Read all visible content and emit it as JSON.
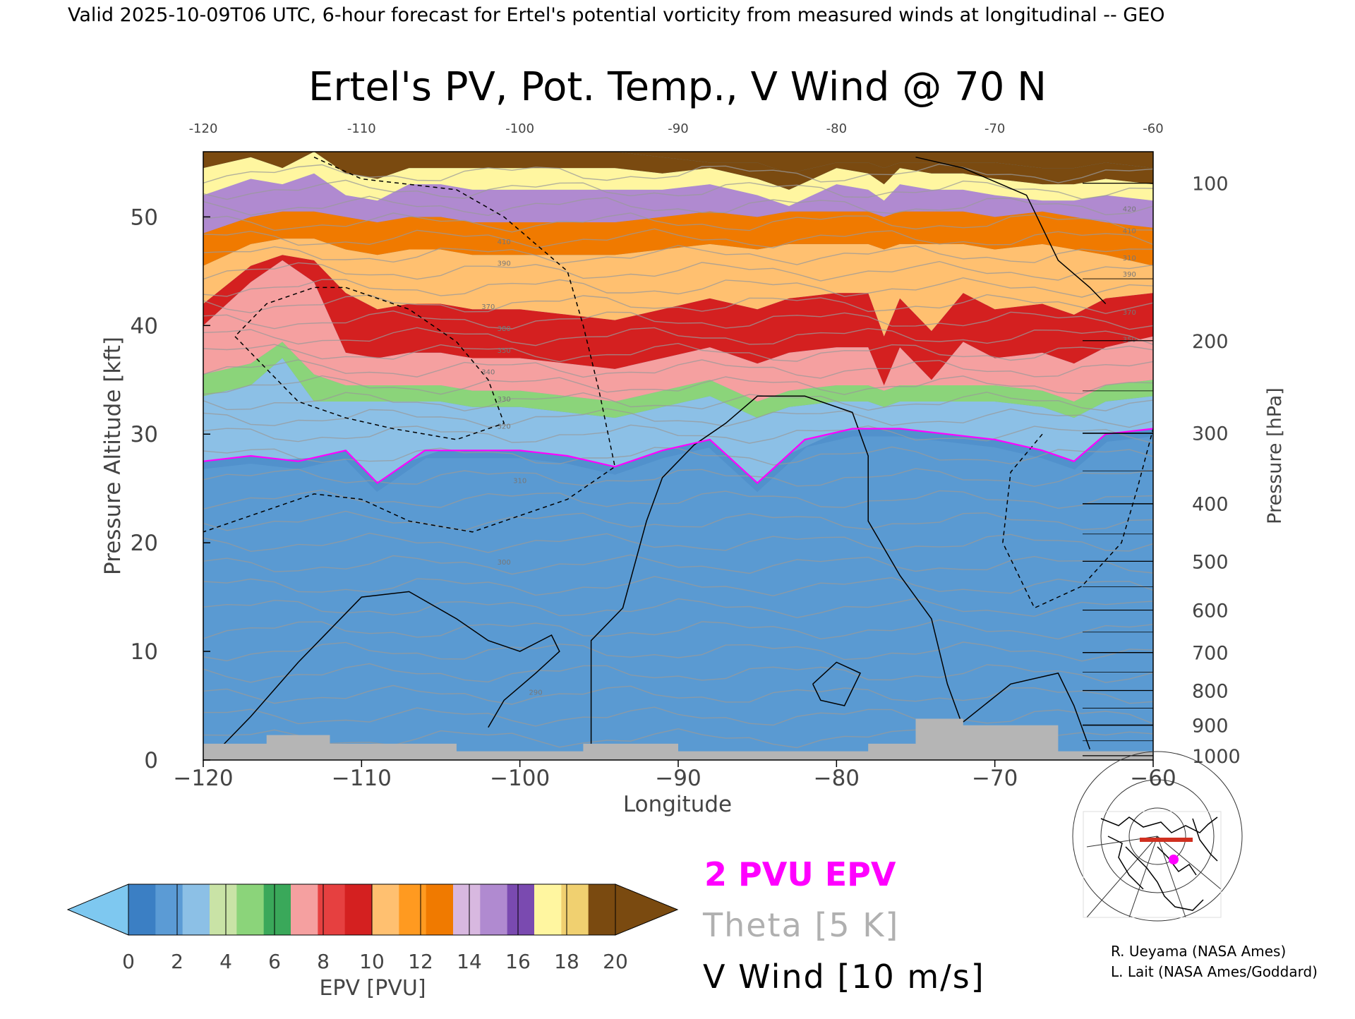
{
  "header": {
    "valid_line": "Valid 2025-10-09T06 UTC, 6-hour forecast for Ertel's potential vorticity from measured winds at longitudinal -- GEO"
  },
  "chart_data": {
    "type": "heatmap",
    "title": "Ertel's PV, Pot. Temp., V Wind @ 70 N",
    "xlabel": "Longitude",
    "ylabel_left": "Pressure Altitude [kft]",
    "ylabel_right": "Pressure [hPa]",
    "xlim": [
      -120,
      -60
    ],
    "ylim": [
      0,
      56
    ],
    "x_ticks": [
      -120,
      -110,
      -100,
      -90,
      -80,
      -70,
      -60
    ],
    "x_tick_labels": [
      "−120",
      "−110",
      "−100",
      "−90",
      "−80",
      "−70",
      "−60"
    ],
    "x_top_tick_labels": [
      "-120",
      "-110",
      "-100",
      "-90",
      "-80",
      "-70",
      "-60"
    ],
    "y_ticks": [
      0,
      10,
      20,
      30,
      40,
      50
    ],
    "y_tick_labels": [
      "0",
      "10",
      "20",
      "30",
      "40",
      "50"
    ],
    "pressure_ticks": [
      {
        "hPa": 100,
        "kft": 53.1,
        "label": "100"
      },
      {
        "hPa": 200,
        "kft": 38.6,
        "label": "200"
      },
      {
        "hPa": 300,
        "kft": 30.1,
        "label": "300"
      },
      {
        "hPa": 400,
        "kft": 23.6,
        "label": "400"
      },
      {
        "hPa": 500,
        "kft": 18.3,
        "label": "500"
      },
      {
        "hPa": 600,
        "kft": 13.8,
        "label": "600"
      },
      {
        "hPa": 700,
        "kft": 9.9,
        "label": "700"
      },
      {
        "hPa": 800,
        "kft": 6.4,
        "label": "800"
      },
      {
        "hPa": 900,
        "kft": 3.2,
        "label": "900"
      },
      {
        "hPa": 1000,
        "kft": 0.4,
        "label": "1000"
      }
    ],
    "tropopause_2pvu_kft": {
      "x": [
        -120,
        -117,
        -114,
        -111,
        -109,
        -106,
        -103,
        -100,
        -97,
        -94,
        -91,
        -88,
        -85,
        -82,
        -79,
        -76,
        -73,
        -70,
        -67,
        -65,
        -63,
        -60
      ],
      "y": [
        27.5,
        28,
        27.5,
        28.5,
        25.5,
        28.5,
        28.5,
        28.5,
        28,
        27,
        28.5,
        29.5,
        25.5,
        29.5,
        30.5,
        30.5,
        30,
        29.5,
        28.5,
        27.5,
        30,
        30.5
      ]
    },
    "band_boundaries_kft": {
      "x": [
        -120,
        -117,
        -115,
        -113,
        -111,
        -109,
        -107,
        -105,
        -103,
        -100,
        -97,
        -94,
        -91,
        -88,
        -85,
        -83,
        -80,
        -78,
        -77,
        -76,
        -74,
        -72,
        -70,
        -67,
        -65,
        -63,
        -60
      ],
      "layers": [
        {
          "pvu": 4,
          "y": [
            33.5,
            34.5,
            37,
            33,
            33,
            33,
            33,
            33,
            32.5,
            32.5,
            32,
            31.5,
            32.5,
            33.5,
            31.5,
            32.5,
            33,
            33,
            32.5,
            33,
            33,
            33,
            33,
            32.5,
            31.5,
            33,
            33.5
          ]
        },
        {
          "pvu": 6,
          "y": [
            35.5,
            36.5,
            38.5,
            35.5,
            34.5,
            34.5,
            34.5,
            34.5,
            34,
            34,
            33.5,
            33,
            34,
            35,
            33,
            34,
            34.5,
            34.5,
            34,
            34.5,
            34.5,
            34.5,
            34.5,
            34,
            33,
            34.5,
            35
          ]
        },
        {
          "pvu": 8,
          "y": [
            40,
            44,
            46,
            44,
            37.5,
            37,
            37.5,
            37.5,
            37,
            37,
            36.5,
            36,
            37,
            38,
            36.5,
            37.5,
            38,
            38,
            34.5,
            38,
            35,
            38.5,
            37,
            37.5,
            36.5,
            38,
            39
          ]
        },
        {
          "pvu": 10,
          "y": [
            42,
            45.5,
            46.5,
            46,
            43,
            41.5,
            42,
            42,
            41.5,
            41.5,
            41,
            40.5,
            41.5,
            42.5,
            41.5,
            42.5,
            43,
            43,
            39,
            42.5,
            39.5,
            43,
            41.5,
            42,
            41,
            42.5,
            43
          ]
        },
        {
          "pvu": 12,
          "y": [
            45.5,
            47.5,
            48,
            48,
            47,
            46.5,
            47,
            47,
            46.5,
            46.5,
            46.5,
            46.5,
            47,
            47.5,
            47,
            47.5,
            47.5,
            47.5,
            47,
            47.5,
            47.5,
            47.5,
            47,
            47.5,
            47,
            46.5,
            45.5
          ]
        },
        {
          "pvu": 14,
          "y": [
            48.5,
            50,
            50.5,
            50.5,
            50,
            49.5,
            50,
            50,
            49.5,
            49.5,
            49.5,
            49.5,
            50,
            50.5,
            50,
            50.5,
            50.5,
            50.5,
            50,
            50.5,
            50.5,
            50.5,
            50,
            50.5,
            50,
            49.5,
            49
          ]
        },
        {
          "pvu": 16,
          "y": [
            52,
            53.5,
            53,
            54,
            52,
            51.5,
            53,
            53,
            52.5,
            52.5,
            52.5,
            52.5,
            52.5,
            53,
            52,
            51,
            53,
            52.5,
            51.5,
            53,
            52.5,
            52.5,
            52,
            51.5,
            51.5,
            52,
            51.5
          ]
        },
        {
          "pvu": 18,
          "y": [
            54.5,
            55.5,
            54.5,
            56,
            54,
            53.5,
            54.5,
            54.5,
            54.5,
            54.5,
            54.5,
            54.5,
            54,
            54.5,
            53.5,
            52.5,
            54.5,
            54,
            53,
            54.5,
            54,
            54,
            53.5,
            53,
            53,
            53.5,
            53
          ]
        },
        {
          "pvu": 20,
          "y": [
            56,
            56,
            56,
            56,
            56,
            56,
            56,
            56,
            56,
            56,
            56,
            56,
            55.5,
            55,
            55,
            54,
            55,
            55,
            54.5,
            55,
            55,
            55,
            55,
            54.5,
            54.5,
            55,
            54.5
          ]
        }
      ]
    },
    "terrain_kft": {
      "x": [
        -120,
        -116,
        -114,
        -112,
        -110,
        -106,
        -104,
        -100,
        -98,
        -96,
        -93,
        -90,
        -86,
        -80,
        -78,
        -76,
        -75,
        -74,
        -72,
        -68,
        -66,
        -60
      ],
      "y": [
        1.5,
        2.3,
        2.3,
        1.5,
        1.5,
        1.5,
        0.8,
        0.8,
        0.8,
        1.5,
        1.5,
        0.8,
        0.8,
        0.8,
        1.5,
        1.5,
        3.8,
        3.8,
        3.2,
        3.2,
        0.8,
        0.8
      ]
    },
    "theta_contours": {
      "interval_K": 5,
      "levels_kft": [
        2,
        4,
        6,
        8,
        10,
        12,
        14,
        16,
        18,
        20,
        22,
        24,
        26,
        28,
        30,
        31.5,
        33,
        34.5,
        36,
        37.5,
        39,
        40.5,
        42,
        43.5,
        45,
        46.5,
        48,
        49.5,
        51,
        52.5,
        54
      ],
      "labels": [
        {
          "text": "290",
          "x": -99,
          "y": 6
        },
        {
          "text": "300",
          "x": -101,
          "y": 18
        },
        {
          "text": "310",
          "x": -100,
          "y": 25.5
        },
        {
          "text": "320",
          "x": -101,
          "y": 30.5
        },
        {
          "text": "330",
          "x": -101,
          "y": 33
        },
        {
          "text": "340",
          "x": -102,
          "y": 35.5
        },
        {
          "text": "350",
          "x": -101,
          "y": 37.5
        },
        {
          "text": "360",
          "x": -101,
          "y": 39.5
        },
        {
          "text": "370",
          "x": -102,
          "y": 41.5
        },
        {
          "text": "380",
          "x": -101,
          "y": 39.5
        },
        {
          "text": "390",
          "x": -101,
          "y": 45.5
        },
        {
          "text": "410",
          "x": -101,
          "y": 47.5
        },
        {
          "text": "310",
          "x": -61.5,
          "y": 46
        },
        {
          "text": "350",
          "x": -61.5,
          "y": 38.5
        },
        {
          "text": "370",
          "x": -61.5,
          "y": 41
        },
        {
          "text": "390",
          "x": -61.5,
          "y": 44.5
        },
        {
          "text": "410",
          "x": -61.5,
          "y": 48.5
        },
        {
          "text": "420",
          "x": -61.5,
          "y": 50.5
        }
      ]
    },
    "v_wind_contours": {
      "interval_m_s": 10,
      "lines": [
        {
          "level": 0,
          "style": "solid",
          "points": [
            [
              -119,
              1
            ],
            [
              -117,
              4
            ],
            [
              -114,
              9
            ],
            [
              -112,
              12
            ],
            [
              -110,
              15
            ],
            [
              -107,
              15.5
            ],
            [
              -104,
              13
            ],
            [
              -102,
              11
            ],
            [
              -100,
              10
            ],
            [
              -98,
              11.5
            ],
            [
              -97.5,
              10
            ],
            [
              -99,
              8
            ],
            [
              -101,
              5.5
            ],
            [
              -102,
              3
            ]
          ]
        },
        {
          "level": 0,
          "style": "solid",
          "points": [
            [
              -95.5,
              0.5
            ],
            [
              -95.5,
              6
            ],
            [
              -95.5,
              11
            ],
            [
              -93.5,
              14
            ],
            [
              -92,
              22
            ],
            [
              -91,
              26
            ],
            [
              -89,
              29
            ],
            [
              -87,
              31
            ],
            [
              -85,
              33.5
            ],
            [
              -82,
              33.5
            ],
            [
              -79,
              32
            ],
            [
              -78,
              28
            ],
            [
              -78,
              22
            ],
            [
              -76,
              17
            ],
            [
              -74,
              13
            ],
            [
              -73,
              7
            ],
            [
              -72,
              3
            ]
          ]
        },
        {
          "level": 0,
          "style": "solid",
          "points": [
            [
              -72,
              3.5
            ],
            [
              -69,
              7
            ],
            [
              -66,
              8
            ],
            [
              -65,
              5
            ],
            [
              -64,
              1
            ]
          ]
        },
        {
          "level": 10,
          "style": "solid",
          "points": [
            [
              -81.5,
              7
            ],
            [
              -80,
              9
            ],
            [
              -78.5,
              8
            ],
            [
              -79.5,
              5
            ],
            [
              -81,
              5.5
            ],
            [
              -81.5,
              7
            ]
          ]
        },
        {
          "level": 0,
          "style": "solid",
          "points": [
            [
              -75,
              55.5
            ],
            [
              -72,
              54.5
            ],
            [
              -68,
              52
            ],
            [
              -66,
              46
            ],
            [
              -64,
              43.5
            ],
            [
              -63,
              42
            ]
          ]
        },
        {
          "level": -10,
          "style": "dashed",
          "points": [
            [
              -111,
              43.5
            ],
            [
              -107,
              41.5
            ],
            [
              -104,
              38.5
            ],
            [
              -102,
              35
            ],
            [
              -101,
              31
            ],
            [
              -104,
              29.5
            ],
            [
              -108,
              30.5
            ],
            [
              -111,
              31.5
            ],
            [
              -114,
              33
            ],
            [
              -116,
              36
            ],
            [
              -118,
              39
            ],
            [
              -116,
              42
            ],
            [
              -113,
              43.5
            ],
            [
              -111,
              43.5
            ]
          ]
        },
        {
          "level": -10,
          "style": "dashed",
          "points": [
            [
              -113,
              55.5
            ],
            [
              -110,
              53.5
            ],
            [
              -104,
              52.5
            ],
            [
              -101,
              50
            ],
            [
              -97,
              45
            ],
            [
              -96,
              40
            ],
            [
              -95,
              34
            ],
            [
              -94,
              27
            ],
            [
              -97,
              24
            ],
            [
              -100,
              22.5
            ],
            [
              -103,
              21
            ],
            [
              -107,
              22
            ],
            [
              -110,
              24
            ],
            [
              -113,
              24.5
            ],
            [
              -116,
              23
            ],
            [
              -120,
              21
            ]
          ]
        },
        {
          "level": -10,
          "style": "dashed",
          "points": [
            [
              -67,
              30
            ],
            [
              -69,
              26.5
            ],
            [
              -69.5,
              20
            ],
            [
              -67.5,
              14
            ],
            [
              -64.5,
              16
            ],
            [
              -62,
              20
            ],
            [
              -61,
              25
            ],
            [
              -60,
              30.5
            ]
          ]
        }
      ]
    },
    "colorbar": {
      "label": "EPV [PVU]",
      "min": 0,
      "max": 20,
      "tick_values": [
        0,
        2,
        4,
        6,
        8,
        10,
        12,
        14,
        16,
        18,
        20
      ],
      "tick_labels": [
        "0",
        "2",
        "4",
        "6",
        "8",
        "10",
        "12",
        "14",
        "16",
        "18",
        "20"
      ],
      "under_color": "#7ec8f0",
      "over_color": "#7a4a10",
      "colors": [
        "#3b7fc4",
        "#5b9bd5",
        "#8cc0e6",
        "#c9e3a6",
        "#8bd47a",
        "#3aa85a",
        "#f5a0a0",
        "#e64040",
        "#d42020",
        "#ffc070",
        "#ff9a20",
        "#f07a00",
        "#d8b8e0",
        "#b08ad0",
        "#7a4ab0",
        "#fff6a0",
        "#f0d070",
        "#7a4a10"
      ]
    },
    "legend": [
      {
        "label": "2 PVU EPV",
        "color": "#ff00ff"
      },
      {
        "label": "Theta [5 K]",
        "color": "#b0b0b0"
      },
      {
        "label": "V Wind [10 m/s]",
        "color": "#000000"
      }
    ]
  },
  "credits": {
    "line1": "R. Ueyama (NASA Ames)",
    "line2": "L. Lait (NASA Ames/Goddard)"
  },
  "colors": {
    "tropopause": "#ff00ff",
    "theta": "#9a9a9a",
    "wind": "#000000",
    "terrain": "#b5b5b5",
    "troposphere": "#5a9ad2",
    "marker": "#ff00ff",
    "flight_track": "#d03020"
  },
  "inset_map": {
    "type": "polar-projection locator map",
    "marker_color": "#ff00ff"
  }
}
